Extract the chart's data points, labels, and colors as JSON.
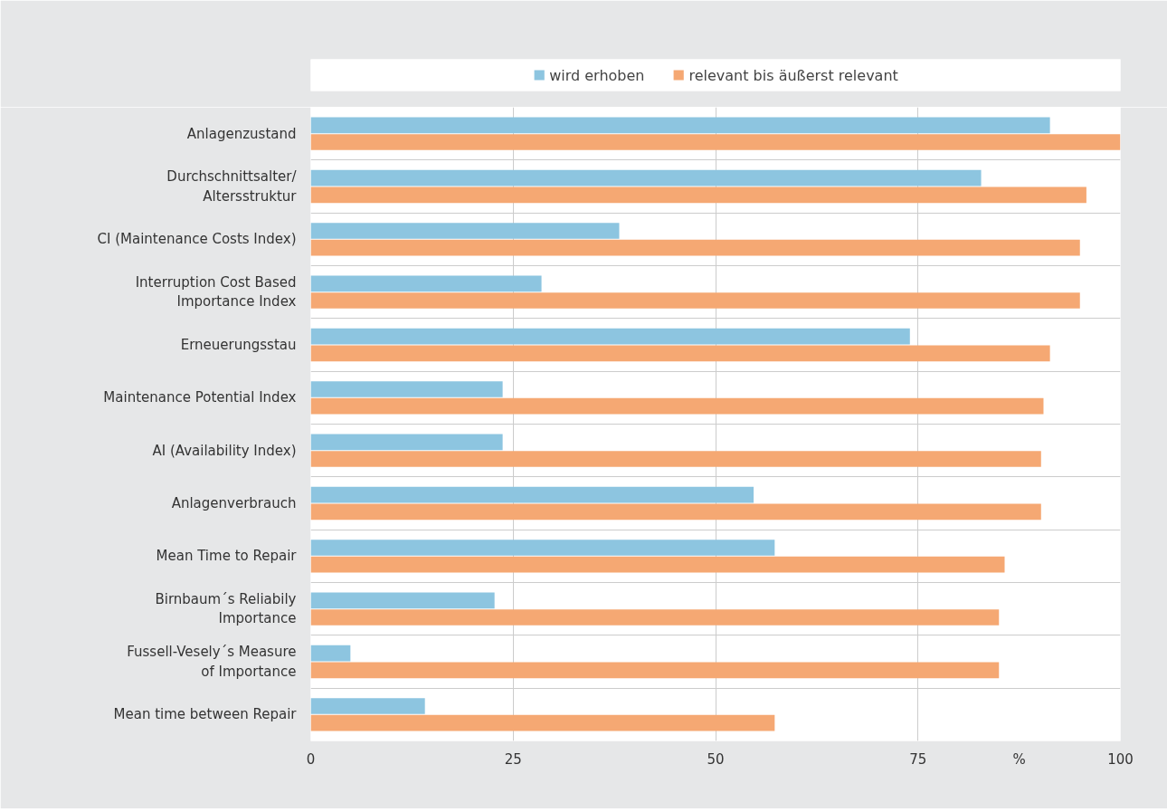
{
  "chart_data": {
    "type": "bar",
    "orientation": "horizontal",
    "categories": [
      "Anlagenzustand",
      "Durchschnittsalter/\nAltersstruktur",
      "CI (Maintenance Costs Index)",
      "Interruption Cost Based\nImportance Index",
      "Erneuerungsstau",
      "Maintenance Potential Index",
      "AI (Availability Index)",
      "Anlagenverbrauch",
      "Mean Time to Repair",
      "Birnbaum´s Reliabily\nImportance",
      "Fussell-Vesely´s Measure\nof Importance",
      "Mean time between Repair"
    ],
    "series": [
      {
        "name": "wird erhoben",
        "color": "#8dc5e0",
        "values": [
          91.3,
          82.8,
          38.1,
          28.5,
          74.0,
          23.7,
          23.7,
          54.7,
          57.3,
          22.7,
          4.9,
          14.1
        ]
      },
      {
        "name": "relevant bis äußerst relevant",
        "color": "#f5a873",
        "values": [
          100,
          95.8,
          95.0,
          95.0,
          91.3,
          90.5,
          90.2,
          90.2,
          85.7,
          85.0,
          85.0,
          57.3
        ]
      }
    ],
    "xlim": [
      0,
      100
    ],
    "xticks": [
      0,
      25,
      50,
      75,
      {
        "value": 87.5,
        "label": "%"
      },
      100
    ],
    "grid": true,
    "legend": "top"
  }
}
